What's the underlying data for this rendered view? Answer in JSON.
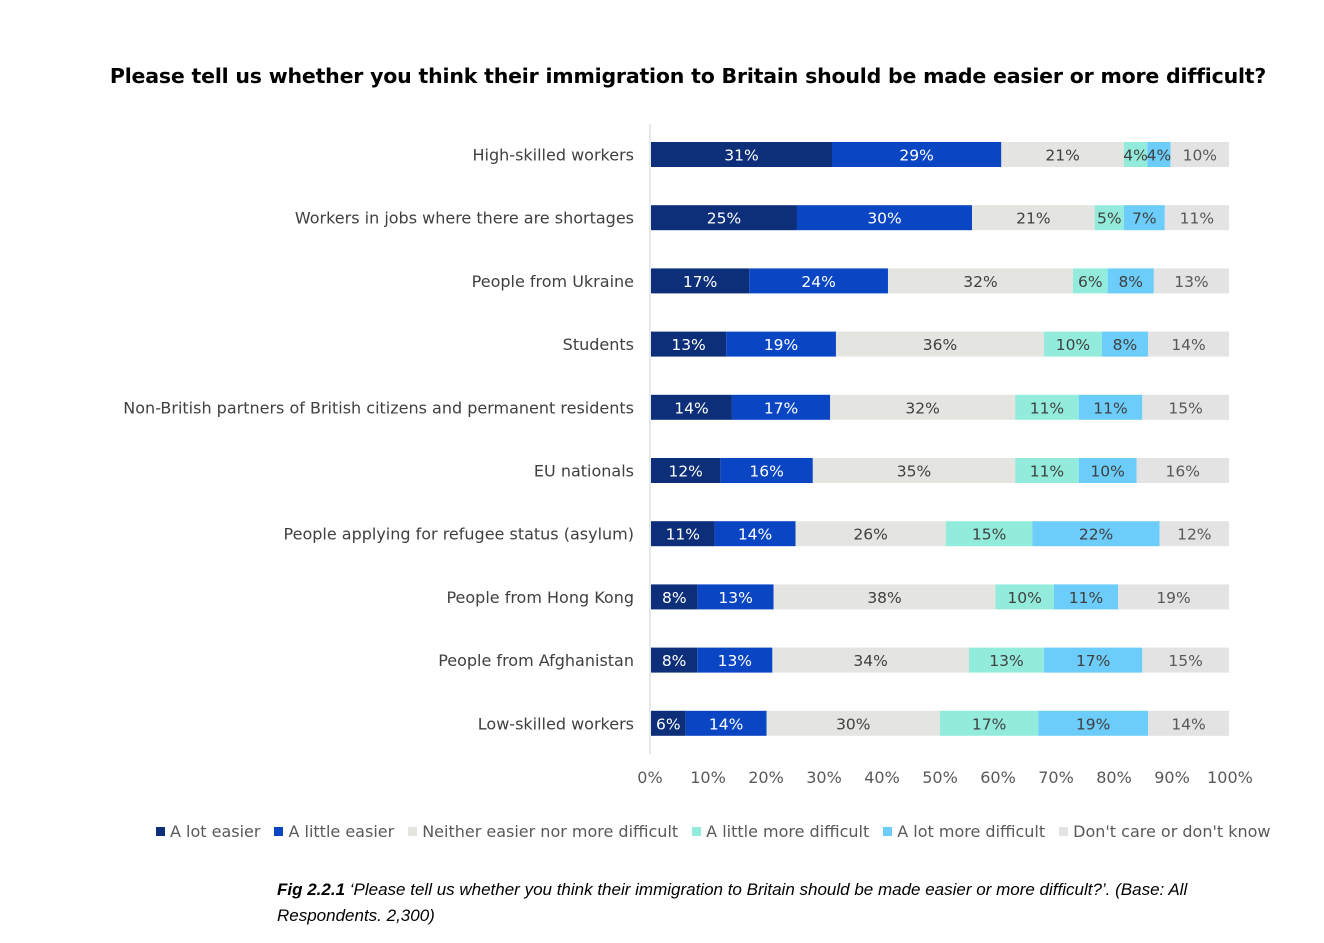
{
  "chart_data": {
    "type": "bar",
    "orientation": "horizontal",
    "stacked": true,
    "title": "Please tell us whether you think their immigration to Britain should be made easier or more difficult?",
    "xlim": [
      0,
      100
    ],
    "x_ticks": [
      "0%",
      "10%",
      "20%",
      "30%",
      "40%",
      "50%",
      "60%",
      "70%",
      "80%",
      "90%",
      "100%"
    ],
    "legend_position": "bottom",
    "categories": [
      "High-skilled workers",
      "Workers in jobs where there are shortages",
      "People from Ukraine",
      "Students",
      "Non-British partners of British citizens and permanent residents",
      "EU nationals",
      "People applying for refugee status (asylum)",
      "People from Hong Kong",
      "People from Afghanistan",
      "Low-skilled workers"
    ],
    "series": [
      {
        "name": "A lot easier",
        "color": "#0d2f7a",
        "label_color": "#ffffff",
        "values": [
          31,
          25,
          17,
          13,
          14,
          12,
          11,
          8,
          8,
          6
        ]
      },
      {
        "name": "A little easier",
        "color": "#0a46c4",
        "label_color": "#ffffff",
        "values": [
          29,
          30,
          24,
          19,
          17,
          16,
          14,
          13,
          13,
          14
        ]
      },
      {
        "name": "Neither easier nor more difficult",
        "color": "#e4e4e0",
        "label_color": "#404040",
        "values": [
          21,
          21,
          32,
          36,
          32,
          35,
          26,
          38,
          34,
          30
        ]
      },
      {
        "name": "A little more difficult",
        "color": "#93ecdb",
        "label_color": "#404040",
        "values": [
          4,
          5,
          6,
          10,
          11,
          11,
          15,
          10,
          13,
          17
        ]
      },
      {
        "name": "A lot more difficult",
        "color": "#6ccdfa",
        "label_color": "#404040",
        "values": [
          4,
          7,
          8,
          8,
          11,
          10,
          22,
          11,
          17,
          19
        ]
      },
      {
        "name": "Don't care or don't know",
        "color": "#e3e3e3",
        "label_color": "#595959",
        "values": [
          10,
          11,
          13,
          14,
          15,
          16,
          12,
          19,
          15,
          14
        ]
      }
    ]
  },
  "caption": {
    "fig_label": "Fig 2.2.1",
    "text": " ‘Please tell us whether you think their immigration to Britain should be made easier or more difficult?’. (Base: All Respondents. 2,300)"
  }
}
